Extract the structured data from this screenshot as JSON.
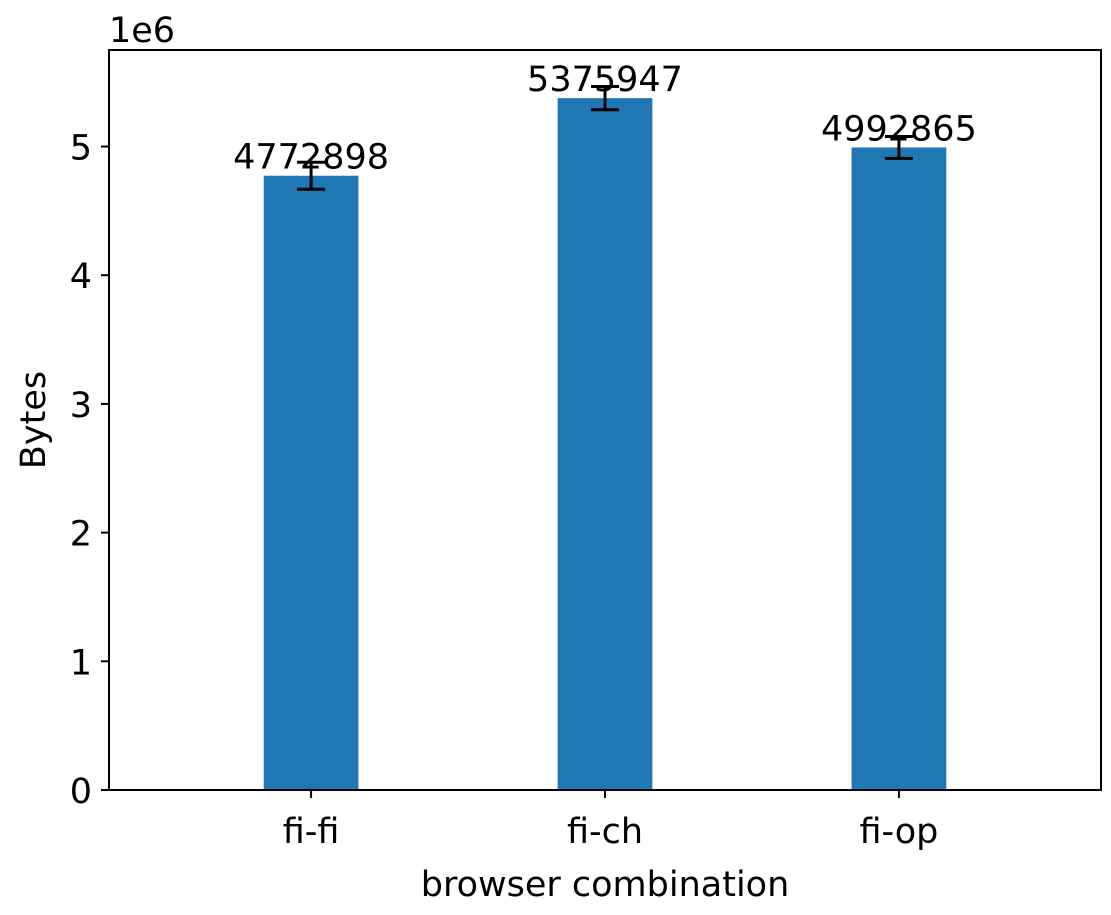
{
  "chart_data": {
    "type": "bar",
    "categories": [
      "fi-fi",
      "fi-ch",
      "fi-op"
    ],
    "values": [
      4772898,
      5375947,
      4992865
    ],
    "errors": [
      105000,
      90000,
      85000
    ],
    "data_labels": [
      "4772898",
      "5375947",
      "4992865"
    ],
    "xlabel": "browser combination",
    "ylabel": "Bytes",
    "y_offset_label": "1e6",
    "ylim": [
      0,
      5750000
    ],
    "yticks": [
      0,
      1000000,
      2000000,
      3000000,
      4000000,
      5000000
    ],
    "ytick_labels": [
      "0",
      "1",
      "2",
      "3",
      "4",
      "5"
    ],
    "bar_color": "#1f77b4",
    "grid": false
  }
}
